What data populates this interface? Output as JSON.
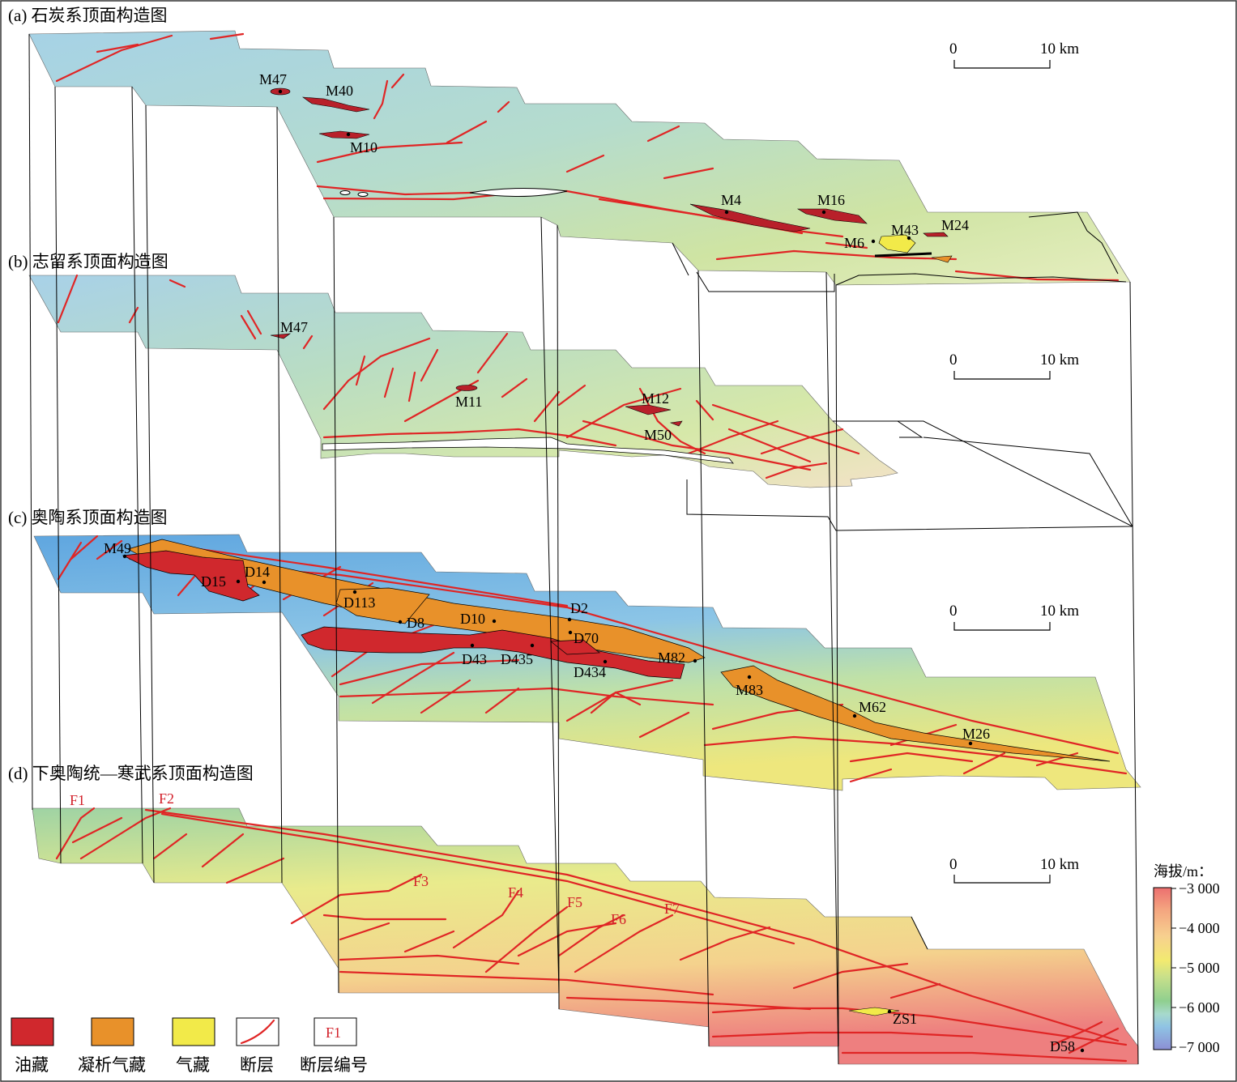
{
  "panels": [
    {
      "id": "a",
      "title": "(a) 石炭系顶面构造图"
    },
    {
      "id": "b",
      "title": "(b) 志留系顶面构造图"
    },
    {
      "id": "c",
      "title": "(c) 奥陶系顶面构造图"
    },
    {
      "id": "d",
      "title": "(d) 下奥陶统—寒武系顶面构造图"
    }
  ],
  "scale_bar": {
    "start": "0",
    "end": "10 km"
  },
  "wells": {
    "a": [
      "M47",
      "M40",
      "M10",
      "M4",
      "M16",
      "M43",
      "M24",
      "M6"
    ],
    "b": [
      "M47",
      "M11",
      "M12",
      "M50"
    ],
    "c": [
      "M49",
      "D15",
      "D14",
      "D113",
      "D8",
      "D10",
      "D2",
      "D70",
      "D43",
      "D435",
      "D434",
      "M82",
      "M83",
      "M62",
      "M26"
    ],
    "d": [
      "ZS1",
      "D58"
    ]
  },
  "faults_d": [
    "F1",
    "F2",
    "F3",
    "F4",
    "F5",
    "F6",
    "F7"
  ],
  "legend": [
    {
      "key": "oil",
      "label": "油藏",
      "color": "#d0282d"
    },
    {
      "key": "condensate",
      "label": "凝析气藏",
      "color": "#e8912a"
    },
    {
      "key": "gas",
      "label": "气藏",
      "color": "#f2ea49"
    },
    {
      "key": "fault",
      "label": "断层"
    },
    {
      "key": "fault_no",
      "label": "断层编号",
      "sample": "F1"
    }
  ],
  "colorbar": {
    "title": "海拔/m：",
    "ticks": [
      "−3 000",
      "−4 000",
      "−5 000",
      "−6 000",
      "−7 000"
    ],
    "stops": [
      "#ec6f6f",
      "#f4a37f",
      "#f7d08f",
      "#f2ea70",
      "#c9e08a",
      "#8fcf8f",
      "#a7d9cc",
      "#8fc3e4",
      "#8c8fd4"
    ]
  },
  "colors": {
    "fault": "#e02525",
    "oil": "#d0282d",
    "condensate": "#e8912a",
    "gas": "#f2ea49"
  }
}
